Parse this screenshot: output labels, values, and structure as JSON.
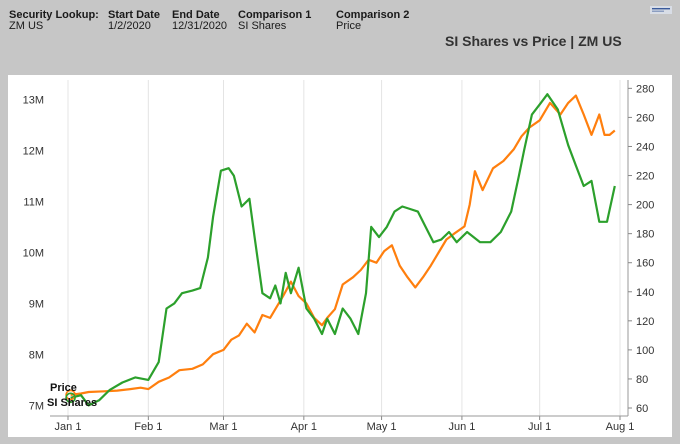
{
  "header": {
    "security_label": "Security Lookup:",
    "security_value": "ZM US",
    "start_label": "Start Date",
    "start_value": "1/2/2020",
    "end_label": "End Date",
    "end_value": "12/31/2020",
    "comp1_label": "Comparison 1",
    "comp1_value": "SI Shares",
    "comp2_label": "Comparison 2",
    "comp2_value": "Price"
  },
  "colors": {
    "si_shares": "#2ca02c",
    "price": "#ff7f0e",
    "background": "#c6c6c6"
  },
  "chart_data": {
    "type": "line",
    "title": "SI Shares vs Price | ZM US",
    "x_ticks": [
      "Jan 1",
      "Feb 1",
      "Mar 1",
      "Apr 1",
      "May 1",
      "Jun 1",
      "Jul 1",
      "Aug 1"
    ],
    "x_range": [
      "2020-01-01",
      "2020-08-01"
    ],
    "y_left": {
      "ticks": [
        "7M",
        "8M",
        "9M",
        "10M",
        "11M",
        "12M",
        "13M"
      ],
      "range": [
        6.95,
        13.3
      ]
    },
    "y_right": {
      "ticks": [
        "60",
        "80",
        "100",
        "120",
        "140",
        "160",
        "180",
        "200",
        "220",
        "240",
        "260",
        "280"
      ],
      "range": [
        60,
        283
      ]
    },
    "grid": "vertical",
    "legend": [
      "Price",
      "SI Shares"
    ],
    "series": [
      {
        "name": "SI Shares",
        "axis": "left",
        "points": [
          [
            "2020-01-02",
            7.15
          ],
          [
            "2020-01-06",
            7.2
          ],
          [
            "2020-01-09",
            7.0
          ],
          [
            "2020-01-13",
            7.1
          ],
          [
            "2020-01-17",
            7.3
          ],
          [
            "2020-01-22",
            7.45
          ],
          [
            "2020-01-27",
            7.55
          ],
          [
            "2020-02-01",
            7.5
          ],
          [
            "2020-02-05",
            7.85
          ],
          [
            "2020-02-08",
            8.9
          ],
          [
            "2020-02-11",
            9.0
          ],
          [
            "2020-02-14",
            9.2
          ],
          [
            "2020-02-18",
            9.25
          ],
          [
            "2020-02-21",
            9.3
          ],
          [
            "2020-02-24",
            9.9
          ],
          [
            "2020-02-26",
            10.7
          ],
          [
            "2020-02-29",
            11.6
          ],
          [
            "2020-03-03",
            11.65
          ],
          [
            "2020-03-05",
            11.5
          ],
          [
            "2020-03-08",
            10.9
          ],
          [
            "2020-03-11",
            11.05
          ],
          [
            "2020-03-13",
            10.3
          ],
          [
            "2020-03-16",
            9.2
          ],
          [
            "2020-03-19",
            9.1
          ],
          [
            "2020-03-21",
            9.35
          ],
          [
            "2020-03-23",
            9.0
          ],
          [
            "2020-03-25",
            9.6
          ],
          [
            "2020-03-27",
            9.2
          ],
          [
            "2020-03-30",
            9.7
          ],
          [
            "2020-04-02",
            8.9
          ],
          [
            "2020-04-05",
            8.7
          ],
          [
            "2020-04-08",
            8.4
          ],
          [
            "2020-04-10",
            8.7
          ],
          [
            "2020-04-13",
            8.4
          ],
          [
            "2020-04-16",
            8.9
          ],
          [
            "2020-04-19",
            8.7
          ],
          [
            "2020-04-22",
            8.4
          ],
          [
            "2020-04-25",
            9.2
          ],
          [
            "2020-04-27",
            10.5
          ],
          [
            "2020-04-30",
            10.3
          ],
          [
            "2020-05-03",
            10.5
          ],
          [
            "2020-05-06",
            10.8
          ],
          [
            "2020-05-09",
            10.9
          ],
          [
            "2020-05-12",
            10.85
          ],
          [
            "2020-05-15",
            10.8
          ],
          [
            "2020-05-18",
            10.5
          ],
          [
            "2020-05-21",
            10.2
          ],
          [
            "2020-05-24",
            10.25
          ],
          [
            "2020-05-27",
            10.4
          ],
          [
            "2020-05-30",
            10.2
          ],
          [
            "2020-06-03",
            10.4
          ],
          [
            "2020-06-08",
            10.2
          ],
          [
            "2020-06-12",
            10.2
          ],
          [
            "2020-06-16",
            10.4
          ],
          [
            "2020-06-20",
            10.8
          ],
          [
            "2020-06-23",
            11.5
          ],
          [
            "2020-06-25",
            12.0
          ],
          [
            "2020-06-28",
            12.7
          ],
          [
            "2020-07-01",
            12.9
          ],
          [
            "2020-07-04",
            13.1
          ],
          [
            "2020-07-08",
            12.8
          ],
          [
            "2020-07-12",
            12.1
          ],
          [
            "2020-07-15",
            11.7
          ],
          [
            "2020-07-18",
            11.3
          ],
          [
            "2020-07-21",
            11.4
          ],
          [
            "2020-07-24",
            10.6
          ],
          [
            "2020-07-27",
            10.6
          ],
          [
            "2020-07-30",
            11.3
          ]
        ]
      },
      {
        "name": "Price",
        "axis": "right",
        "points": [
          [
            "2020-01-02",
            69
          ],
          [
            "2020-01-06",
            70
          ],
          [
            "2020-01-09",
            71
          ],
          [
            "2020-01-15",
            71.5
          ],
          [
            "2020-01-20",
            72
          ],
          [
            "2020-01-25",
            73
          ],
          [
            "2020-01-29",
            74
          ],
          [
            "2020-02-01",
            73
          ],
          [
            "2020-02-05",
            78
          ],
          [
            "2020-02-09",
            81
          ],
          [
            "2020-02-13",
            86
          ],
          [
            "2020-02-18",
            87
          ],
          [
            "2020-02-22",
            90
          ],
          [
            "2020-02-26",
            97
          ],
          [
            "2020-03-01",
            100
          ],
          [
            "2020-03-04",
            107
          ],
          [
            "2020-03-07",
            110
          ],
          [
            "2020-03-10",
            118
          ],
          [
            "2020-03-13",
            112
          ],
          [
            "2020-03-16",
            124
          ],
          [
            "2020-03-19",
            122
          ],
          [
            "2020-03-22",
            131
          ],
          [
            "2020-03-24",
            137
          ],
          [
            "2020-03-27",
            147
          ],
          [
            "2020-03-30",
            137
          ],
          [
            "2020-04-02",
            132
          ],
          [
            "2020-04-05",
            122
          ],
          [
            "2020-04-08",
            117
          ],
          [
            "2020-04-10",
            122
          ],
          [
            "2020-04-13",
            128
          ],
          [
            "2020-04-16",
            145
          ],
          [
            "2020-04-20",
            150
          ],
          [
            "2020-04-23",
            155
          ],
          [
            "2020-04-26",
            162
          ],
          [
            "2020-04-29",
            160
          ],
          [
            "2020-05-02",
            168
          ],
          [
            "2020-05-05",
            172
          ],
          [
            "2020-05-08",
            158
          ],
          [
            "2020-05-11",
            150
          ],
          [
            "2020-05-14",
            143
          ],
          [
            "2020-05-17",
            150
          ],
          [
            "2020-05-20",
            158
          ],
          [
            "2020-05-23",
            167
          ],
          [
            "2020-05-26",
            176
          ],
          [
            "2020-05-29",
            180
          ],
          [
            "2020-06-02",
            185
          ],
          [
            "2020-06-04",
            200
          ],
          [
            "2020-06-06",
            223
          ],
          [
            "2020-06-09",
            210
          ],
          [
            "2020-06-13",
            225
          ],
          [
            "2020-06-17",
            230
          ],
          [
            "2020-06-21",
            238
          ],
          [
            "2020-06-24",
            247
          ],
          [
            "2020-06-27",
            253
          ],
          [
            "2020-07-01",
            258
          ],
          [
            "2020-07-05",
            270
          ],
          [
            "2020-07-09",
            262
          ],
          [
            "2020-07-12",
            270
          ],
          [
            "2020-07-15",
            275
          ],
          [
            "2020-07-18",
            262
          ],
          [
            "2020-07-21",
            248
          ],
          [
            "2020-07-24",
            262
          ],
          [
            "2020-07-26",
            248
          ],
          [
            "2020-07-28",
            248
          ],
          [
            "2020-07-30",
            251
          ]
        ]
      }
    ]
  }
}
